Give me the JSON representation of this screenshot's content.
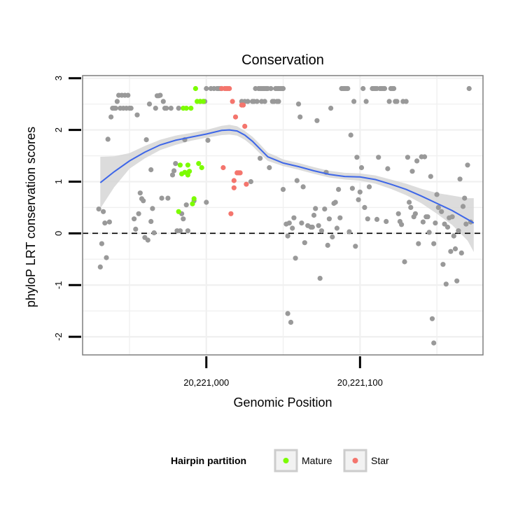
{
  "chart_data": {
    "type": "scatter",
    "title": "Conservation",
    "xlabel": "Genomic Position",
    "ylabel": "phyloP LRT conservation scores",
    "xlim": [
      20220919.5,
      20221180
    ],
    "ylim": [
      -2.35,
      3.05
    ],
    "x_ticks": [
      {
        "value": 20221000,
        "label": "20,221,000"
      },
      {
        "value": 20221100,
        "label": "20,221,100"
      }
    ],
    "y_ticks": [
      {
        "value": 3,
        "label": "3"
      },
      {
        "value": 2,
        "label": "2"
      },
      {
        "value": 1,
        "label": "1"
      },
      {
        "value": 0,
        "label": "0"
      },
      {
        "value": -1,
        "label": "-1"
      },
      {
        "value": -2,
        "label": "-2"
      }
    ],
    "grid": true,
    "reference_line": {
      "y": 0,
      "style": "dashed"
    },
    "colors": {
      "other": "#999999",
      "mature": "#7cfc00",
      "star": "#f4756d",
      "smooth_line": "#3d66e8",
      "band": "#d3d3d3",
      "panel_border": "#7f7f7f",
      "grid": "#f0f0f0"
    },
    "legend": {
      "title": "Hairpin partition",
      "position": "bottom",
      "entries": [
        {
          "label": "Mature",
          "color": "#7cfc00"
        },
        {
          "label": "Star",
          "color": "#f4756d"
        }
      ]
    },
    "smooth": {
      "x": [
        20220931,
        20220940,
        20220950,
        20220960,
        20220970,
        20220980,
        20220990,
        20221000,
        20221010,
        20221015,
        20221020,
        20221025,
        20221030,
        20221035,
        20221040,
        20221045,
        20221050,
        20221060,
        20221070,
        20221080,
        20221090,
        20221100,
        20221110,
        20221120,
        20221130,
        20221140,
        20221150,
        20221160,
        20221170,
        20221174
      ],
      "y": [
        0.98,
        1.19,
        1.4,
        1.57,
        1.71,
        1.8,
        1.86,
        1.92,
        1.99,
        2.0,
        1.98,
        1.9,
        1.78,
        1.63,
        1.48,
        1.42,
        1.36,
        1.29,
        1.21,
        1.14,
        1.1,
        1.09,
        1.04,
        0.95,
        0.85,
        0.72,
        0.58,
        0.44,
        0.27,
        0.2
      ],
      "lower": [
        0.48,
        0.89,
        1.25,
        1.45,
        1.61,
        1.71,
        1.79,
        1.85,
        1.9,
        1.91,
        1.89,
        1.81,
        1.69,
        1.54,
        1.4,
        1.35,
        1.3,
        1.23,
        1.15,
        1.08,
        1.04,
        1.02,
        0.96,
        0.86,
        0.74,
        0.58,
        0.38,
        0.16,
        -0.14,
        -0.36
      ],
      "upper": [
        1.48,
        1.49,
        1.55,
        1.69,
        1.81,
        1.89,
        1.94,
        2.0,
        2.08,
        2.1,
        2.07,
        1.98,
        1.87,
        1.72,
        1.56,
        1.5,
        1.43,
        1.36,
        1.28,
        1.21,
        1.17,
        1.16,
        1.12,
        1.04,
        0.96,
        0.86,
        0.78,
        0.73,
        0.68,
        0.68
      ]
    },
    "series": [
      {
        "name": "",
        "color": "#999999",
        "points": [
          [
            20220930,
            0.47
          ],
          [
            20220931,
            -0.65
          ],
          [
            20220932,
            -0.2
          ],
          [
            20220933,
            0.42
          ],
          [
            20220934,
            0.2
          ],
          [
            20220935,
            -0.47
          ],
          [
            20220936,
            1.82
          ],
          [
            20220937,
            0.22
          ],
          [
            20220938,
            2.25
          ],
          [
            20220939,
            2.42
          ],
          [
            20220940,
            2.42
          ],
          [
            20220941,
            2.42
          ],
          [
            20220942,
            2.55
          ],
          [
            20220943,
            2.67
          ],
          [
            20220944,
            2.42
          ],
          [
            20220945,
            2.67
          ],
          [
            20220946,
            2.42
          ],
          [
            20220947,
            2.67
          ],
          [
            20220948,
            2.42
          ],
          [
            20220949,
            2.67
          ],
          [
            20220950,
            2.42
          ],
          [
            20220951,
            2.42
          ],
          [
            20220953,
            0.28
          ],
          [
            20220954,
            0.08
          ],
          [
            20220955,
            2.29
          ],
          [
            20220956,
            0.38
          ],
          [
            20220957,
            0.78
          ],
          [
            20220958,
            0.67
          ],
          [
            20220959,
            0.63
          ],
          [
            20220960,
            -0.08
          ],
          [
            20220961,
            1.81
          ],
          [
            20220962,
            -0.13
          ],
          [
            20220963,
            2.5
          ],
          [
            20220964,
            0.23
          ],
          [
            20220964,
            1.23
          ],
          [
            20220965,
            0.48
          ],
          [
            20220966,
            0.01
          ],
          [
            20220967,
            2.42
          ],
          [
            20220968,
            2.66
          ],
          [
            20220969,
            2.66
          ],
          [
            20220970,
            2.67
          ],
          [
            20220971,
            0.68
          ],
          [
            20220972,
            2.55
          ],
          [
            20220973,
            2.42
          ],
          [
            20220974,
            2.42
          ],
          [
            20220975,
            0.68
          ],
          [
            20220977,
            2.42
          ],
          [
            20220978,
            1.13
          ],
          [
            20220979,
            1.21
          ],
          [
            20220980,
            1.35
          ],
          [
            20220981,
            0.05
          ],
          [
            20220982,
            2.42
          ],
          [
            20220983,
            0.05
          ],
          [
            20220984,
            0.38
          ],
          [
            20220985,
            0.28
          ],
          [
            20220986,
            1.81
          ],
          [
            20220987,
            0.55
          ],
          [
            20220988,
            0.05
          ],
          [
            20220992,
            0.63
          ],
          [
            20220996,
            2.55
          ],
          [
            20220998,
            2.55
          ],
          [
            20220999,
            2.55
          ],
          [
            20221000,
            2.8
          ],
          [
            20221000,
            0.6
          ],
          [
            20221001,
            1.8
          ],
          [
            20221003,
            2.8
          ],
          [
            20221005,
            2.8
          ],
          [
            20221007,
            2.8
          ],
          [
            20221008,
            2.8
          ],
          [
            20221009,
            2.8
          ],
          [
            20221010,
            2.8
          ],
          [
            20221023,
            2.55
          ],
          [
            20221025,
            2.55
          ],
          [
            20221027,
            2.55
          ],
          [
            20221029,
            1.0
          ],
          [
            20221030,
            2.55
          ],
          [
            20221031,
            2.55
          ],
          [
            20221032,
            2.8
          ],
          [
            20221033,
            2.55
          ],
          [
            20221034,
            2.8
          ],
          [
            20221035,
            1.45
          ],
          [
            20221035,
            2.8
          ],
          [
            20221036,
            2.55
          ],
          [
            20221036,
            2.8
          ],
          [
            20221037,
            2.8
          ],
          [
            20221038,
            2.55
          ],
          [
            20221038,
            2.8
          ],
          [
            20221039,
            2.8
          ],
          [
            20221040,
            2.8
          ],
          [
            20221041,
            1.27
          ],
          [
            20221042,
            2.8
          ],
          [
            20221043,
            2.55
          ],
          [
            20221044,
            2.55
          ],
          [
            20221045,
            2.8
          ],
          [
            20221046,
            2.55
          ],
          [
            20221046,
            2.8
          ],
          [
            20221047,
            2.55
          ],
          [
            20221047,
            2.8
          ],
          [
            20221048,
            2.8
          ],
          [
            20221049,
            2.8
          ],
          [
            20221050,
            2.8
          ],
          [
            20221050,
            0.85
          ],
          [
            20221052,
            0.18
          ],
          [
            20221053,
            -0.05
          ],
          [
            20221053,
            -1.55
          ],
          [
            20221054,
            0.2
          ],
          [
            20221055,
            -1.72
          ],
          [
            20221056,
            0.1
          ],
          [
            20221057,
            0.3
          ],
          [
            20221058,
            -0.48
          ],
          [
            20221059,
            1.02
          ],
          [
            20221060,
            2.5
          ],
          [
            20221061,
            2.25
          ],
          [
            20221062,
            0.2
          ],
          [
            20221063,
            0.9
          ],
          [
            20221064,
            -0.18
          ],
          [
            20221066,
            0.15
          ],
          [
            20221068,
            0.12
          ],
          [
            20221069,
            0.12
          ],
          [
            20221070,
            0.35
          ],
          [
            20221071,
            0.48
          ],
          [
            20221072,
            2.18
          ],
          [
            20221073,
            0.15
          ],
          [
            20221074,
            -0.87
          ],
          [
            20221075,
            0.05
          ],
          [
            20221077,
            0.47
          ],
          [
            20221078,
            1.18
          ],
          [
            20221079,
            -0.23
          ],
          [
            20221080,
            0.28
          ],
          [
            20221081,
            2.42
          ],
          [
            20221082,
            -0.07
          ],
          [
            20221083,
            0.58
          ],
          [
            20221084,
            0.6
          ],
          [
            20221085,
            0.1
          ],
          [
            20221086,
            0.85
          ],
          [
            20221087,
            0.3
          ],
          [
            20221088,
            2.8
          ],
          [
            20221089,
            2.8
          ],
          [
            20221090,
            2.8
          ],
          [
            20221091,
            2.8
          ],
          [
            20221092,
            2.8
          ],
          [
            20221093,
            0.03
          ],
          [
            20221094,
            1.9
          ],
          [
            20221095,
            0.87
          ],
          [
            20221096,
            2.55
          ],
          [
            20221097,
            -0.25
          ],
          [
            20221098,
            1.47
          ],
          [
            20221099,
            0.65
          ],
          [
            20221100,
            0.8
          ],
          [
            20221101,
            1.27
          ],
          [
            20221102,
            2.8
          ],
          [
            20221103,
            0.5
          ],
          [
            20221104,
            2.55
          ],
          [
            20221105,
            0.28
          ],
          [
            20221106,
            0.9
          ],
          [
            20221108,
            2.8
          ],
          [
            20221109,
            2.8
          ],
          [
            20221110,
            2.8
          ],
          [
            20221111,
            2.8
          ],
          [
            20221111,
            0.27
          ],
          [
            20221112,
            1.47
          ],
          [
            20221113,
            2.8
          ],
          [
            20221114,
            2.8
          ],
          [
            20221115,
            2.8
          ],
          [
            20221116,
            2.8
          ],
          [
            20221117,
            0.23
          ],
          [
            20221118,
            1.25
          ],
          [
            20221119,
            2.55
          ],
          [
            20221120,
            2.8
          ],
          [
            20221121,
            2.8
          ],
          [
            20221122,
            2.8
          ],
          [
            20221123,
            2.55
          ],
          [
            20221124,
            2.55
          ],
          [
            20221125,
            0.38
          ],
          [
            20221126,
            0.23
          ],
          [
            20221127,
            0.17
          ],
          [
            20221128,
            2.55
          ],
          [
            20221129,
            -0.55
          ],
          [
            20221130,
            2.55
          ],
          [
            20221131,
            1.47
          ],
          [
            20221132,
            0.6
          ],
          [
            20221133,
            0.5
          ],
          [
            20221134,
            1.2
          ],
          [
            20221135,
            0.32
          ],
          [
            20221136,
            0.38
          ],
          [
            20221137,
            1.4
          ],
          [
            20221138,
            -0.2
          ],
          [
            20221140,
            1.48
          ],
          [
            20221141,
            0.22
          ],
          [
            20221142,
            1.48
          ],
          [
            20221143,
            0.32
          ],
          [
            20221144,
            0.32
          ],
          [
            20221145,
            0.02
          ],
          [
            20221146,
            1.1
          ],
          [
            20221147,
            -1.65
          ],
          [
            20221148,
            -0.2
          ],
          [
            20221148,
            -2.12
          ],
          [
            20221149,
            0.2
          ],
          [
            20221150,
            0.75
          ],
          [
            20221151,
            0.5
          ],
          [
            20221153,
            0.42
          ],
          [
            20221154,
            -0.6
          ],
          [
            20221155,
            0.18
          ],
          [
            20221156,
            -0.98
          ],
          [
            20221157,
            0.12
          ],
          [
            20221158,
            0.3
          ],
          [
            20221159,
            -0.35
          ],
          [
            20221160,
            0.32
          ],
          [
            20221161,
            -0.05
          ],
          [
            20221162,
            -0.3
          ],
          [
            20221163,
            -0.92
          ],
          [
            20221164,
            0.05
          ],
          [
            20221165,
            1.05
          ],
          [
            20221166,
            -0.38
          ],
          [
            20221167,
            0.52
          ],
          [
            20221168,
            0.68
          ],
          [
            20221169,
            0.18
          ],
          [
            20221170,
            1.32
          ],
          [
            20221171,
            2.8
          ],
          [
            20221172,
            0.22
          ]
        ]
      },
      {
        "name": "Mature",
        "color": "#7cfc00",
        "points": [
          [
            20220982,
            0.42
          ],
          [
            20220983,
            1.32
          ],
          [
            20220984,
            1.15
          ],
          [
            20220985,
            2.42
          ],
          [
            20220986,
            1.18
          ],
          [
            20220987,
            2.42
          ],
          [
            20220988,
            1.32
          ],
          [
            20220988,
            1.13
          ],
          [
            20220989,
            1.2
          ],
          [
            20220990,
            2.42
          ],
          [
            20220991,
            0.57
          ],
          [
            20220992,
            0.67
          ],
          [
            20220993,
            2.8
          ],
          [
            20220994,
            2.55
          ],
          [
            20220995,
            1.35
          ],
          [
            20220996,
            2.55
          ],
          [
            20220997,
            1.27
          ],
          [
            20220998,
            2.55
          ]
        ]
      },
      {
        "name": "Star",
        "color": "#f4756d",
        "points": [
          [
            20221010,
            2.8
          ],
          [
            20221011,
            1.27
          ],
          [
            20221012,
            2.8
          ],
          [
            20221013,
            2.8
          ],
          [
            20221014,
            2.8
          ],
          [
            20221015,
            2.8
          ],
          [
            20221016,
            0.38
          ],
          [
            20221017,
            2.55
          ],
          [
            20221018,
            1.02
          ],
          [
            20221018,
            0.88
          ],
          [
            20221019,
            2.25
          ],
          [
            20221020,
            1.17
          ],
          [
            20221021,
            1.17
          ],
          [
            20221022,
            1.17
          ],
          [
            20221023,
            2.48
          ],
          [
            20221024,
            2.48
          ],
          [
            20221025,
            2.07
          ],
          [
            20221026,
            0.95
          ]
        ]
      }
    ]
  }
}
